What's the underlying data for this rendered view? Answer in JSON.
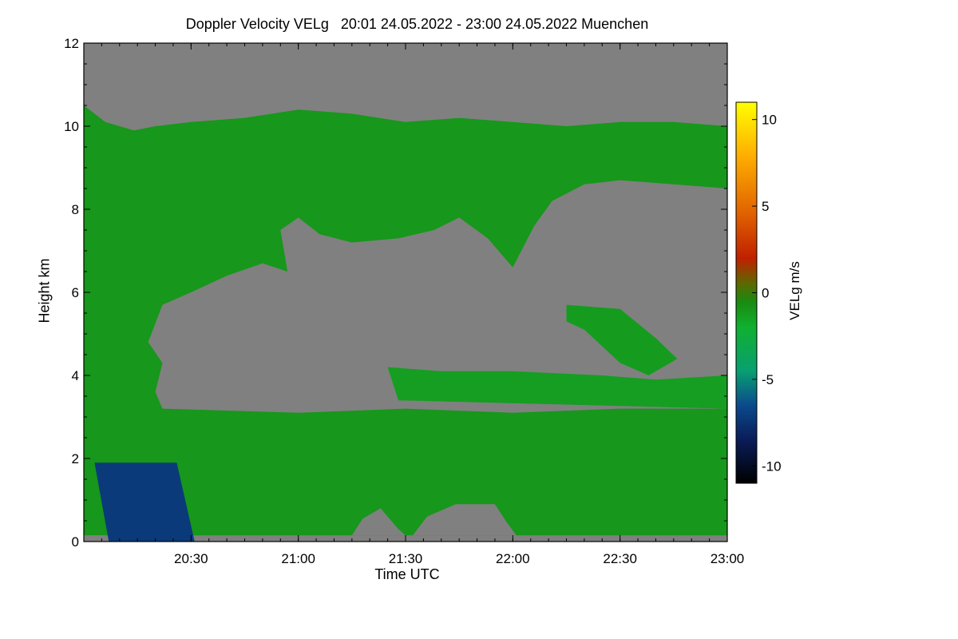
{
  "chart_data": {
    "type": "heatmap",
    "title": "Doppler Velocity VELg   20:01 24.05.2022 - 23:00 24.05.2022 Muenchen",
    "xlabel": "Time UTC",
    "ylabel": "Height km",
    "colorbar_label": "VELg m/s",
    "x_range_minutes": [
      0,
      180
    ],
    "x_ticks": [
      {
        "label": "20:30",
        "minute": 30
      },
      {
        "label": "21:00",
        "minute": 60
      },
      {
        "label": "21:30",
        "minute": 90
      },
      {
        "label": "22:00",
        "minute": 120
      },
      {
        "label": "22:30",
        "minute": 150
      },
      {
        "label": "23:00",
        "minute": 180
      }
    ],
    "ylim": [
      0,
      12
    ],
    "y_ticks": [
      0,
      2,
      4,
      6,
      8,
      10,
      12
    ],
    "clim": [
      -11,
      11
    ],
    "colorbar_ticks": [
      -10,
      -5,
      0,
      5,
      10
    ],
    "no_signal_color": "#808080",
    "palette_stops": [
      {
        "v": -11,
        "c": "#000000"
      },
      {
        "v": -8.5,
        "c": "#0a1c58"
      },
      {
        "v": -6.5,
        "c": "#0a4a8c"
      },
      {
        "v": -4.5,
        "c": "#08a070"
      },
      {
        "v": -2,
        "c": "#10b030"
      },
      {
        "v": -0.5,
        "c": "#1a8a10"
      },
      {
        "v": 0.5,
        "c": "#5a6a00"
      },
      {
        "v": 2,
        "c": "#c02000"
      },
      {
        "v": 4.5,
        "c": "#e06000"
      },
      {
        "v": 8,
        "c": "#ffb000"
      },
      {
        "v": 11,
        "c": "#ffff00"
      }
    ],
    "regions": [
      {
        "name": "upper-cloud",
        "velocity": -1.0,
        "km": [
          [
            0,
            10.5
          ],
          [
            6,
            10.1
          ],
          [
            14,
            9.9
          ],
          [
            20,
            10.0
          ],
          [
            30,
            10.1
          ],
          [
            45,
            10.2
          ],
          [
            60,
            10.4
          ],
          [
            75,
            10.3
          ],
          [
            90,
            10.1
          ],
          [
            105,
            10.2
          ],
          [
            120,
            10.1
          ],
          [
            135,
            10.0
          ],
          [
            150,
            10.1
          ],
          [
            165,
            10.1
          ],
          [
            180,
            10.0
          ],
          [
            180,
            8.5
          ],
          [
            165,
            8.6
          ],
          [
            150,
            8.7
          ],
          [
            140,
            8.6
          ],
          [
            131,
            8.2
          ],
          [
            126,
            7.6
          ],
          [
            120,
            6.6
          ],
          [
            113,
            7.3
          ],
          [
            105,
            7.8
          ],
          [
            98,
            7.5
          ],
          [
            88,
            7.3
          ],
          [
            75,
            7.2
          ],
          [
            66,
            7.4
          ],
          [
            60,
            7.8
          ],
          [
            55,
            7.5
          ],
          [
            57,
            6.5
          ],
          [
            50,
            6.7
          ],
          [
            40,
            6.4
          ],
          [
            30,
            6.0
          ],
          [
            22,
            5.7
          ],
          [
            18,
            4.8
          ],
          [
            22,
            4.3
          ],
          [
            20,
            3.6
          ],
          [
            22,
            3.2
          ],
          [
            60,
            3.1
          ],
          [
            90,
            3.2
          ],
          [
            120,
            3.1
          ],
          [
            150,
            3.2
          ],
          [
            180,
            3.2
          ],
          [
            180,
            0.15
          ],
          [
            0,
            0.15
          ]
        ]
      },
      {
        "name": "mid-patch",
        "velocity": -1.2,
        "km": [
          [
            135,
            5.7
          ],
          [
            150,
            5.6
          ],
          [
            160,
            4.9
          ],
          [
            166,
            4.4
          ],
          [
            158,
            4.0
          ],
          [
            150,
            4.3
          ],
          [
            140,
            5.1
          ],
          [
            135,
            5.3
          ]
        ]
      },
      {
        "name": "lower-mid-band",
        "velocity": -1.3,
        "km": [
          [
            85,
            4.2
          ],
          [
            100,
            4.1
          ],
          [
            120,
            4.1
          ],
          [
            145,
            4.0
          ],
          [
            160,
            3.9
          ],
          [
            180,
            4.0
          ],
          [
            180,
            3.2
          ],
          [
            88,
            3.4
          ]
        ]
      },
      {
        "name": "fall-streak",
        "velocity": -7.2,
        "km": [
          [
            3,
            1.9
          ],
          [
            26,
            1.9
          ],
          [
            31,
            0.0
          ],
          [
            7,
            0.0
          ]
        ]
      },
      {
        "name": "gap-1",
        "velocity": null,
        "km": [
          [
            75,
            0.15
          ],
          [
            78,
            0.55
          ],
          [
            83,
            0.8
          ],
          [
            88,
            0.3
          ],
          [
            90,
            0.15
          ]
        ]
      },
      {
        "name": "gap-2",
        "velocity": null,
        "km": [
          [
            92,
            0.15
          ],
          [
            96,
            0.6
          ],
          [
            104,
            0.9
          ],
          [
            115,
            0.9
          ],
          [
            118,
            0.5
          ],
          [
            121,
            0.15
          ]
        ]
      },
      {
        "name": "gap-3",
        "velocity": null,
        "km": [
          [
            0,
            0.15
          ],
          [
            6,
            0.15
          ],
          [
            6,
            0.0
          ],
          [
            0,
            0.0
          ]
        ]
      }
    ]
  }
}
